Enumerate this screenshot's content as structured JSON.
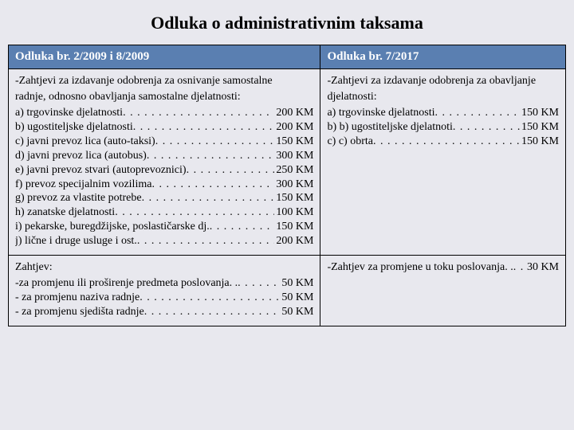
{
  "title": "Odluka o administrativnim taksama",
  "headers": {
    "left": "Odluka br. 2/2009 i 8/2009",
    "right": "Odluka br. 7/2017"
  },
  "left_block1": {
    "intro1": "-Zahtjevi za izdavanje odobrenja za osnivanje samostalne",
    "intro2": "radnje, odnosno obavljanja samostalne djelatnosti:",
    "items": [
      {
        "label": "a) trgovinske djelatnosti",
        "amount": "200 KM"
      },
      {
        "label": "b) ugostiteljske djelatnosti",
        "amount": "200 KM"
      },
      {
        "label": "c) javni prevoz lica (auto-taksi)",
        "amount": "150 KM"
      },
      {
        "label": "d) javni prevoz lica (autobus)",
        "amount": "300 KM"
      },
      {
        "label": "e) javni prevoz stvari (autoprevoznici)",
        "amount": "250 KM"
      },
      {
        "label": "f) prevoz specijalnim vozilima",
        "amount": "300 KM"
      },
      {
        "label": "g) prevoz za vlastite potrebe",
        "amount": "150 KM"
      },
      {
        "label": "h) zanatske djelatnosti",
        "amount": "100 KM"
      },
      {
        "label": "i) pekarske, buregdžijske, poslastičarske dj.",
        "amount": "150 KM"
      },
      {
        "label": "j) lične i druge usluge i ost.",
        "amount": "200 KM"
      }
    ]
  },
  "right_block1": {
    "intro1": "-Zahtjevi za izdavanje odobrenja za obavljanje",
    "intro2": "djelatnosti:",
    "items": [
      {
        "label": "a)  trgovinske djelatnosti",
        "amount": "150  KM"
      },
      {
        "label": "b)  b) ugostiteljske djelatnoti",
        "amount": "150 KM"
      },
      {
        "label": "c)  c) obrta",
        "amount": "150 KM"
      }
    ]
  },
  "left_block2": {
    "intro": "Zahtjev:",
    "items": [
      {
        "label": " -za promjenu ili proširenje predmeta poslovanja. .",
        "amount": "50 KM"
      },
      {
        "label": " - za promjenu naziva radnje",
        "amount": "50 KM"
      },
      {
        "label": " - za promjenu sjedišta radnje",
        "amount": "50 KM"
      }
    ]
  },
  "right_block2": {
    "items": [
      {
        "label": "-Zahtjev za promjene u toku poslovanja. .",
        "amount": "30 KM"
      }
    ]
  },
  "colors": {
    "header_bg": "#5a7fb1",
    "header_text": "#ffffff",
    "page_bg": "#e8e8ee",
    "border": "#000000"
  }
}
